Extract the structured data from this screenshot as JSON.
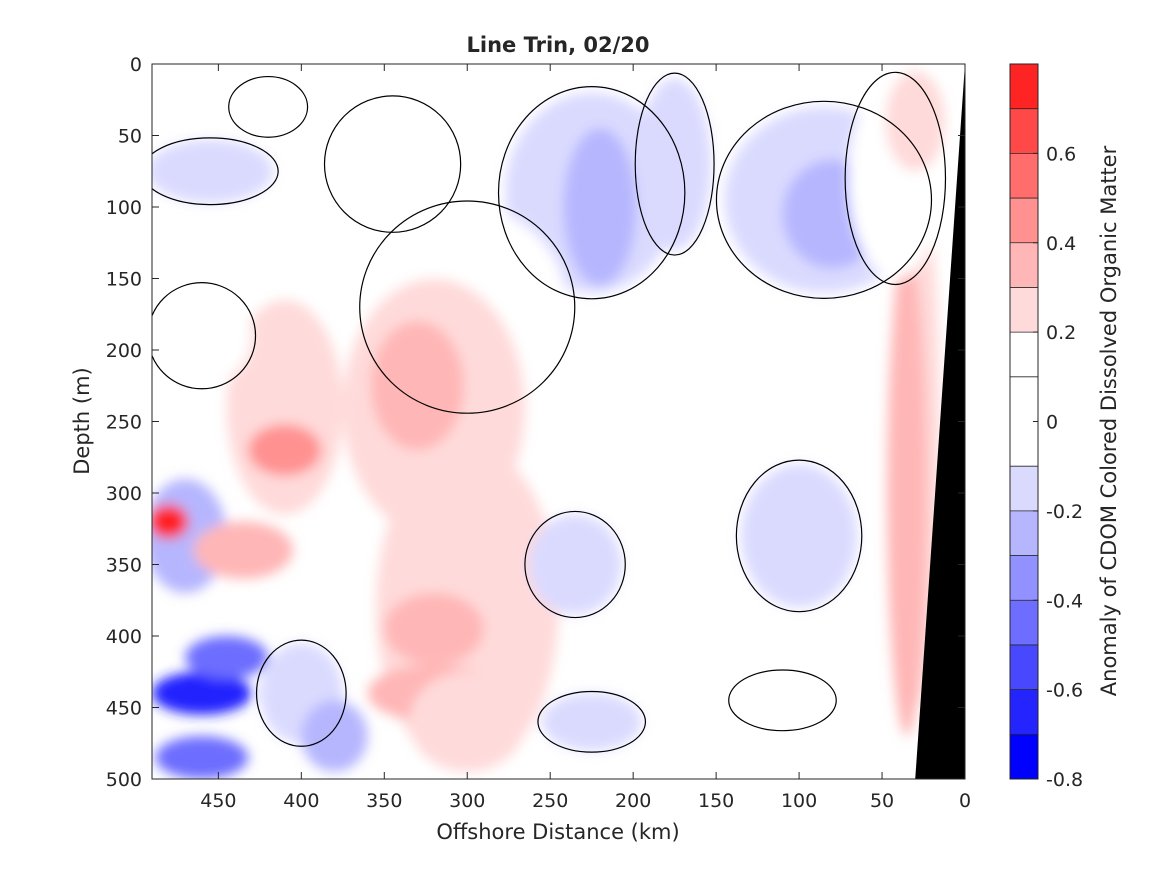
{
  "chart_data": {
    "type": "heatmap",
    "title": "Line Trin, 02/20",
    "xlabel": "Offshore Distance (km)",
    "ylabel": "Depth (m)",
    "colorbar_label": "Anomaly of CDOM Colored Dissolved Organic Matter",
    "xlim": [
      490,
      0
    ],
    "x_reversed": true,
    "ylim": [
      0,
      500
    ],
    "y_reversed": true,
    "x_ticks": [
      450,
      400,
      350,
      300,
      250,
      200,
      150,
      100,
      50,
      0
    ],
    "x_tick_labels": [
      "450",
      "400",
      "350",
      "300",
      "250",
      "200",
      "150",
      "100",
      "50",
      "0"
    ],
    "y_ticks": [
      0,
      50,
      100,
      150,
      200,
      250,
      300,
      350,
      400,
      450,
      500
    ],
    "y_tick_labels": [
      "0",
      "50",
      "100",
      "150",
      "200",
      "250",
      "300",
      "350",
      "400",
      "450",
      "500"
    ],
    "color_limits": [
      -0.8,
      0.8
    ],
    "color_levels": [
      -0.8,
      -0.7,
      -0.6,
      -0.5,
      -0.4,
      -0.3,
      -0.2,
      -0.1,
      0.1,
      0.2,
      0.3,
      0.4,
      0.5,
      0.6,
      0.7,
      0.8
    ],
    "colorbar_ticks": [
      0.6,
      0.4,
      0.2,
      0,
      -0.2,
      -0.4,
      -0.6,
      -0.8
    ],
    "colorbar_tick_labels": [
      "0.6",
      "0.4",
      "0.2",
      "0",
      "-0.2",
      "-0.4",
      "-0.6",
      "-0.8"
    ],
    "colormap": [
      "#0000ff",
      "#2424ff",
      "#4848ff",
      "#6d6dff",
      "#9191ff",
      "#b6b6ff",
      "#dadaff",
      "#ffffff",
      "#ffffff",
      "#ffdada",
      "#ffb6b6",
      "#ff9191",
      "#ff6d6d",
      "#ff4848",
      "#ff2424",
      "#ff0000"
    ],
    "bathymetry_color": "#000000",
    "contour_color": "#000000",
    "bathymetry": [
      [
        0,
        0
      ],
      [
        0,
        500
      ],
      [
        30,
        500
      ]
    ],
    "anomaly_features": [
      {
        "x": 455,
        "y": 75,
        "rx": 38,
        "ry": 22,
        "value": -0.18
      },
      {
        "x": 225,
        "y": 90,
        "rx": 52,
        "ry": 70,
        "value": -0.15
      },
      {
        "x": 220,
        "y": 100,
        "rx": 22,
        "ry": 55,
        "value": -0.28
      },
      {
        "x": 85,
        "y": 95,
        "rx": 60,
        "ry": 65,
        "value": -0.14
      },
      {
        "x": 80,
        "y": 105,
        "rx": 30,
        "ry": 38,
        "value": -0.28
      },
      {
        "x": 175,
        "y": 70,
        "rx": 22,
        "ry": 60,
        "value": -0.13
      },
      {
        "x": 345,
        "y": 70,
        "rx": 38,
        "ry": 45,
        "value": 0.14
      },
      {
        "x": 420,
        "y": 30,
        "rx": 22,
        "ry": 20,
        "value": 0.14
      },
      {
        "x": 300,
        "y": 170,
        "rx": 60,
        "ry": 70,
        "value": 0.15
      },
      {
        "x": 410,
        "y": 240,
        "rx": 35,
        "ry": 75,
        "value": 0.28
      },
      {
        "x": 410,
        "y": 270,
        "rx": 22,
        "ry": 18,
        "value": 0.45
      },
      {
        "x": 320,
        "y": 240,
        "rx": 55,
        "ry": 90,
        "value": 0.26
      },
      {
        "x": 330,
        "y": 225,
        "rx": 28,
        "ry": 45,
        "value": 0.32
      },
      {
        "x": 300,
        "y": 380,
        "rx": 55,
        "ry": 115,
        "value": 0.24
      },
      {
        "x": 320,
        "y": 395,
        "rx": 30,
        "ry": 25,
        "value": 0.35
      },
      {
        "x": 320,
        "y": 440,
        "rx": 40,
        "ry": 20,
        "value": 0.33
      },
      {
        "x": 300,
        "y": 460,
        "rx": 35,
        "ry": 35,
        "value": 0.24
      },
      {
        "x": 460,
        "y": 190,
        "rx": 30,
        "ry": 35,
        "value": 0.18
      },
      {
        "x": 470,
        "y": 330,
        "rx": 25,
        "ry": 40,
        "value": -0.28
      },
      {
        "x": 435,
        "y": 340,
        "rx": 30,
        "ry": 20,
        "value": 0.3
      },
      {
        "x": 460,
        "y": 440,
        "rx": 30,
        "ry": 15,
        "value": -0.62
      },
      {
        "x": 445,
        "y": 415,
        "rx": 25,
        "ry": 15,
        "value": -0.42
      },
      {
        "x": 460,
        "y": 485,
        "rx": 28,
        "ry": 15,
        "value": -0.48
      },
      {
        "x": 400,
        "y": 440,
        "rx": 25,
        "ry": 35,
        "value": -0.18
      },
      {
        "x": 380,
        "y": 470,
        "rx": 20,
        "ry": 25,
        "value": -0.28
      },
      {
        "x": 480,
        "y": 320,
        "rx": 12,
        "ry": 12,
        "value": 0.7
      },
      {
        "x": 225,
        "y": 460,
        "rx": 30,
        "ry": 20,
        "value": -0.15
      },
      {
        "x": 235,
        "y": 350,
        "rx": 28,
        "ry": 35,
        "value": -0.15
      },
      {
        "x": 100,
        "y": 330,
        "rx": 35,
        "ry": 50,
        "value": -0.14
      },
      {
        "x": 110,
        "y": 445,
        "rx": 30,
        "ry": 20,
        "value": 0.13
      },
      {
        "x": 30,
        "y": 260,
        "rx": 15,
        "ry": 190,
        "value": 0.26
      },
      {
        "x": 35,
        "y": 300,
        "rx": 12,
        "ry": 170,
        "value": 0.36
      },
      {
        "x": 42,
        "y": 80,
        "rx": 28,
        "ry": 70,
        "value": 0.14
      },
      {
        "x": 30,
        "y": 40,
        "rx": 18,
        "ry": 35,
        "value": 0.2
      }
    ]
  }
}
